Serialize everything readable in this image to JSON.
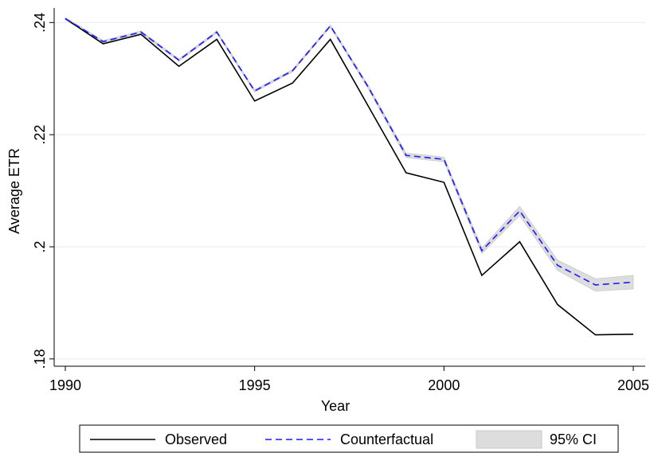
{
  "chart_data": {
    "type": "line",
    "x": [
      1990,
      1991,
      1992,
      1993,
      1994,
      1995,
      1996,
      1997,
      1998,
      1999,
      2000,
      2001,
      2002,
      2003,
      2004,
      2005
    ],
    "series": [
      {
        "name": "Observed",
        "color": "#000000",
        "dash": false,
        "values": [
          0.2407,
          0.2362,
          0.2379,
          0.2322,
          0.237,
          0.226,
          0.2292,
          0.237,
          0.2251,
          0.2132,
          0.2115,
          0.1949,
          0.2009,
          0.1897,
          0.1843,
          0.1844
        ]
      },
      {
        "name": "Counterfactual",
        "color": "#1a1aff",
        "dash": true,
        "values": [
          0.2407,
          0.2366,
          0.2383,
          0.2333,
          0.2383,
          0.2278,
          0.2314,
          0.2394,
          0.2285,
          0.2163,
          0.2156,
          0.1993,
          0.2064,
          0.1967,
          0.1932,
          0.1937
        ]
      }
    ],
    "band": {
      "name": "95% CI",
      "color": "#dddddd",
      "lower": [
        0.2405,
        0.2364,
        0.2381,
        0.2331,
        0.2381,
        0.2276,
        0.2312,
        0.2392,
        0.2282,
        0.2159,
        0.2152,
        0.1988,
        0.2056,
        0.1958,
        0.1921,
        0.1925
      ],
      "upper": [
        0.2409,
        0.2368,
        0.2385,
        0.2335,
        0.2385,
        0.228,
        0.2316,
        0.2396,
        0.2288,
        0.2167,
        0.216,
        0.1998,
        0.2072,
        0.1976,
        0.1943,
        0.1949
      ]
    },
    "xlabel": "Year",
    "ylabel": "Average ETR",
    "xlim": [
      1990,
      2005
    ],
    "xticks": [
      1990,
      1995,
      2000,
      2005
    ],
    "ylim": [
      0.1787,
      0.2426
    ],
    "yticks": [
      {
        "value": 0.18,
        "label": ".18"
      },
      {
        "value": 0.2,
        "label": ".2"
      },
      {
        "value": 0.22,
        "label": ".22"
      },
      {
        "value": 0.24,
        "label": ".24"
      }
    ],
    "grid": true
  }
}
